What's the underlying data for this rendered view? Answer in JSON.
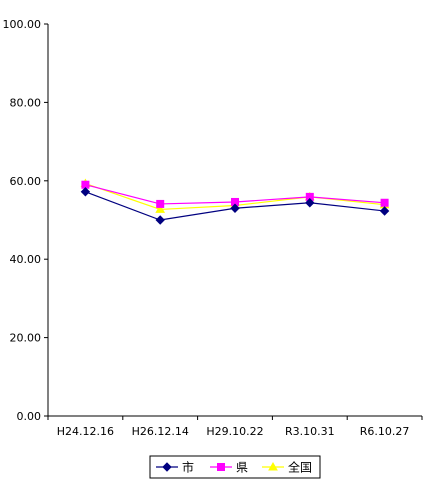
{
  "chart_data": {
    "type": "line",
    "title": "",
    "xlabel": "",
    "ylabel": "",
    "categories": [
      "H24.12.16",
      "H26.12.14",
      "H29.10.22",
      "R3.10.31",
      "R6.10.27"
    ],
    "y_ticks": [
      "0.00",
      "20.00",
      "40.00",
      "60.00",
      "80.00",
      "100.00"
    ],
    "ylim": [
      0,
      100
    ],
    "grid": false,
    "legend": "bottom",
    "series": [
      {
        "name": "市",
        "color": "#000080",
        "marker": "diamond",
        "values": [
          57.2,
          50.0,
          53.0,
          54.4,
          52.3
        ]
      },
      {
        "name": "県",
        "color": "#ff00ff",
        "marker": "square",
        "values": [
          59.0,
          54.1,
          54.6,
          55.9,
          54.4
        ]
      },
      {
        "name": "全国",
        "color": "#ffff00",
        "marker": "triangle",
        "values": [
          59.3,
          52.7,
          53.7,
          55.9,
          53.9
        ]
      }
    ]
  }
}
